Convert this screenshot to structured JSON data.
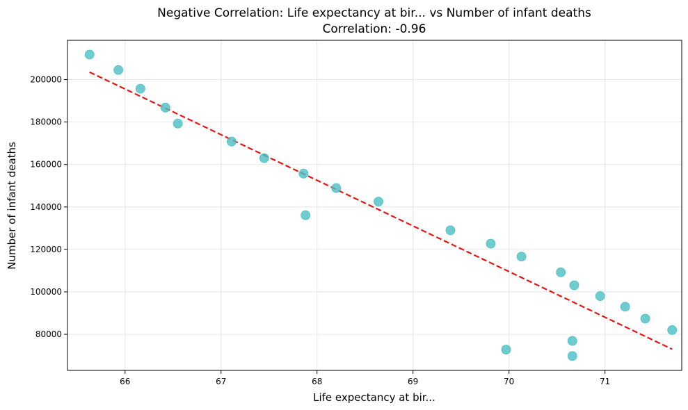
{
  "chart_data": {
    "type": "scatter",
    "title": "Negative Correlation: Life expectancy at bir... vs Number of infant deaths",
    "subtitle": "Correlation: -0.96",
    "xlabel": "Life expectancy at bir...",
    "ylabel": "Number of infant deaths",
    "xlim": [
      65.4,
      71.8
    ],
    "ylim": [
      63000,
      218500
    ],
    "x_ticks": [
      66,
      67,
      68,
      69,
      70,
      71
    ],
    "x_tick_labels": [
      "66",
      "67",
      "68",
      "69",
      "70",
      "71"
    ],
    "y_ticks": [
      80000,
      100000,
      120000,
      140000,
      160000,
      180000,
      200000
    ],
    "y_tick_labels": [
      "80000",
      "100000",
      "120000",
      "140000",
      "160000",
      "180000",
      "200000"
    ],
    "grid": true,
    "point_color": "#4ABFC6",
    "trend_color": "#EE1111",
    "points": [
      [
        65.63,
        211800
      ],
      [
        65.93,
        204500
      ],
      [
        66.16,
        195700
      ],
      [
        66.42,
        186800
      ],
      [
        66.55,
        179300
      ],
      [
        67.11,
        170800
      ],
      [
        67.45,
        163000
      ],
      [
        67.86,
        155700
      ],
      [
        67.88,
        136100
      ],
      [
        68.2,
        148900
      ],
      [
        68.64,
        142500
      ],
      [
        69.39,
        129000
      ],
      [
        69.81,
        122700
      ],
      [
        70.13,
        116600
      ],
      [
        70.54,
        109200
      ],
      [
        70.68,
        103100
      ],
      [
        70.95,
        98000
      ],
      [
        71.21,
        93000
      ],
      [
        71.42,
        87400
      ],
      [
        71.7,
        82000
      ],
      [
        69.97,
        72800
      ],
      [
        70.66,
        76900
      ],
      [
        70.66,
        69800
      ]
    ],
    "trend_line": {
      "x": [
        65.63,
        71.7
      ],
      "y": [
        203500,
        73000
      ]
    }
  }
}
